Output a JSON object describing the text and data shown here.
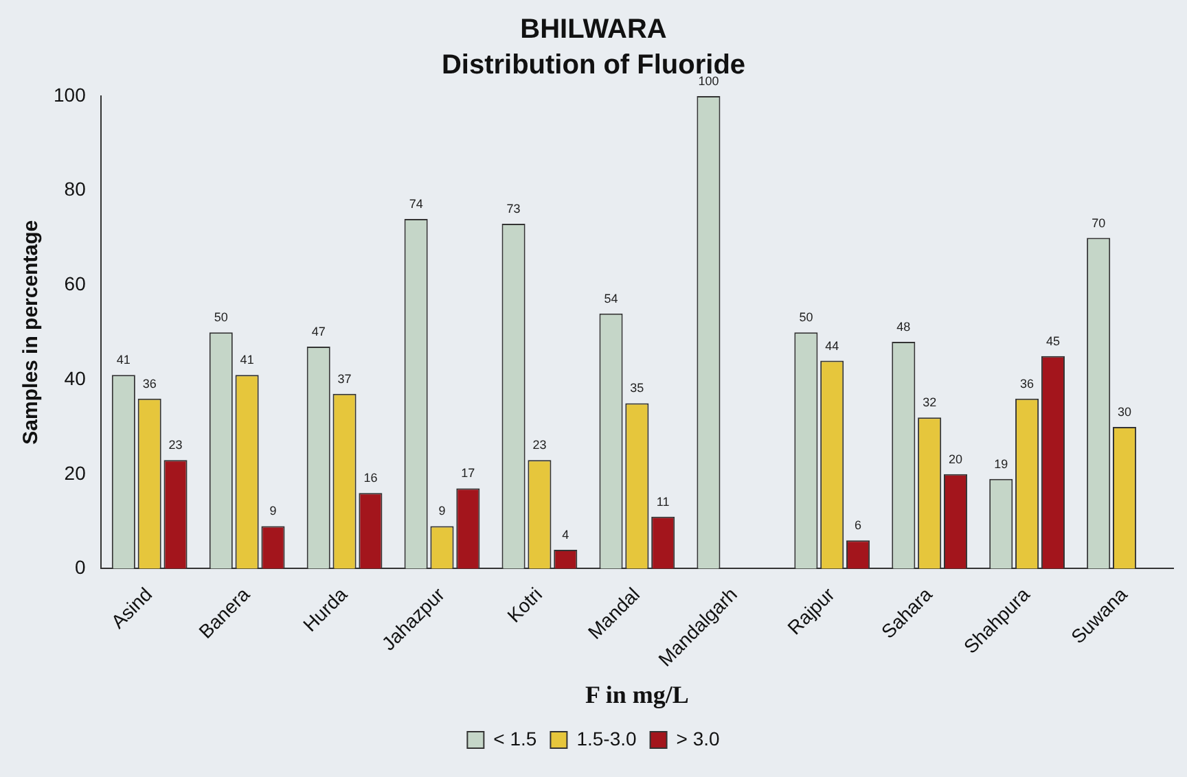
{
  "chart_data": {
    "type": "bar",
    "title": "BHILWARA",
    "subtitle": "Distribution of Fluoride",
    "xlabel": "F in mg/L",
    "ylabel": "Samples in percentage",
    "categories": [
      "Asind",
      "Banera",
      "Hurda",
      "Jahazpur",
      "Kotri",
      "Mandal",
      "Mandalgarh",
      "Rajpur",
      "Sahara",
      "Shahpura",
      "Suwana"
    ],
    "series": [
      {
        "name": "< 1.5",
        "color": "#c5d6c8",
        "values": [
          41,
          50,
          47,
          74,
          73,
          54,
          100,
          50,
          48,
          19,
          70
        ]
      },
      {
        "name": "1.5-3.0",
        "color": "#e6c63c",
        "values": [
          36,
          41,
          37,
          9,
          23,
          35,
          null,
          44,
          32,
          36,
          30
        ]
      },
      {
        "name": "> 3.0",
        "color": "#a3151c",
        "values": [
          23,
          9,
          16,
          17,
          4,
          11,
          null,
          6,
          20,
          45,
          null
        ]
      }
    ],
    "ylim": [
      0,
      100
    ],
    "yticks": [
      0,
      20,
      40,
      60,
      80,
      100
    ],
    "grid": false,
    "legend": "bottom",
    "data_labels": true
  }
}
